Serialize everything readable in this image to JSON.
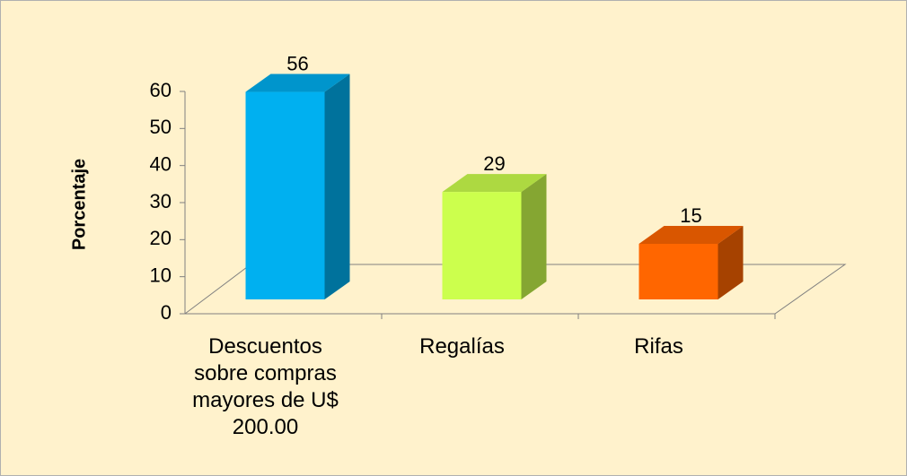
{
  "chart_data": {
    "type": "bar3d",
    "y_axis_label": "Porcentaje",
    "categories": [
      "Descuentos sobre compras mayores de U$ 200.00",
      "Regalías",
      "Rifas"
    ],
    "values": [
      56,
      29,
      15
    ],
    "colors": [
      "#00b0f0",
      "#ccff4d",
      "#ff6600"
    ],
    "ylim": [
      0,
      60
    ],
    "yticks": [
      0,
      10,
      20,
      30,
      40,
      50,
      60
    ]
  }
}
